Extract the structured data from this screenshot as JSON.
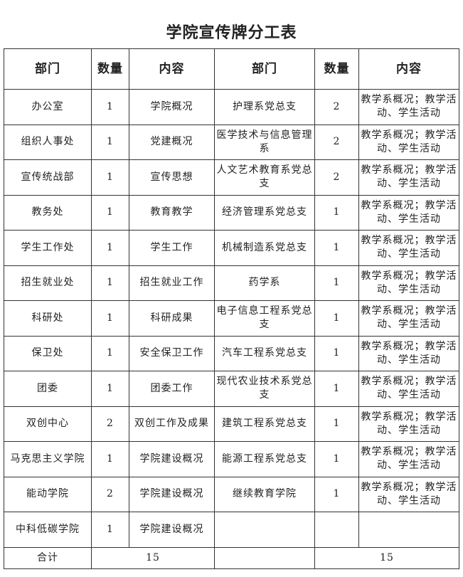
{
  "title": "学院宣传牌分工表",
  "headers": [
    "部门",
    "数量",
    "内容",
    "部门",
    "数量",
    "内容"
  ],
  "rows": [
    [
      "办公室",
      "1",
      "学院概况",
      "护理系党总支",
      "2",
      "教学系概况；教学活动、学生活动"
    ],
    [
      "组织人事处",
      "1",
      "党建概况",
      "医学技术与信息管理系",
      "2",
      "教学系概况；教学活动、学生活动"
    ],
    [
      "宣传统战部",
      "1",
      "宣传思想",
      "人文艺术教育系党总支",
      "2",
      "教学系概况；教学活动、学生活动"
    ],
    [
      "教务处",
      "1",
      "教育教学",
      "经济管理系党总支",
      "1",
      "教学系概况；教学活动、学生活动"
    ],
    [
      "学生工作处",
      "1",
      "学生工作",
      "机械制造系党总支",
      "1",
      "教学系概况；教学活动、学生活动"
    ],
    [
      "招生就业处",
      "1",
      "招生就业工作",
      "药学系",
      "1",
      "教学系概况；教学活动、学生活动"
    ],
    [
      "科研处",
      "1",
      "科研成果",
      "电子信息工程系党总支",
      "1",
      "教学系概况；教学活动、学生活动"
    ],
    [
      "保卫处",
      "1",
      "安全保卫工作",
      "汽车工程系党总支",
      "1",
      "教学系概况；教学活动、学生活动"
    ],
    [
      "团委",
      "1",
      "团委工作",
      "现代农业技术系党总支",
      "1",
      "教学系概况；教学活动、学生活动"
    ],
    [
      "双创中心",
      "2",
      "双创工作及成果",
      "建筑工程系党总支",
      "1",
      "教学系概况；教学活动、学生活动"
    ],
    [
      "马克思主义学院",
      "1",
      "学院建设概况",
      "能源工程系党总支",
      "1",
      "教学系概况；教学活动、学生活动"
    ],
    [
      "能动学院",
      "2",
      "学院建设概况",
      "继续教育学院",
      "1",
      "教学系概况；教学活动、学生活动"
    ],
    [
      "中科低碳学院",
      "1",
      "学院建设概况",
      "",
      "",
      ""
    ]
  ],
  "total": {
    "label": "合计",
    "left": "15",
    "right": "15"
  }
}
